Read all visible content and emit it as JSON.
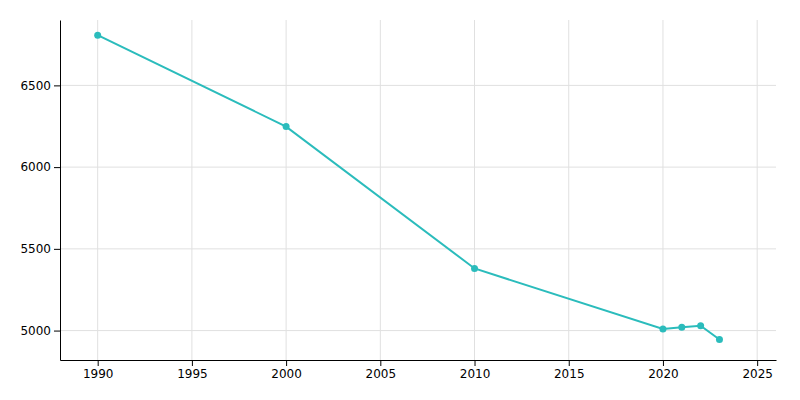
{
  "chart_data": {
    "type": "line",
    "x": [
      1990,
      2000,
      2010,
      2020,
      2021,
      2022,
      2023
    ],
    "values": [
      6807,
      6248,
      5380,
      5010,
      5020,
      5030,
      4945
    ],
    "color": "#2bbcbc",
    "marker": "circle",
    "xlim": [
      1988,
      2026
    ],
    "ylim": [
      4820,
      6900
    ],
    "xticks": [
      1990,
      1995,
      2000,
      2005,
      2010,
      2015,
      2020,
      2025
    ],
    "yticks": [
      5000,
      5500,
      6000,
      6500
    ],
    "grid": true
  }
}
